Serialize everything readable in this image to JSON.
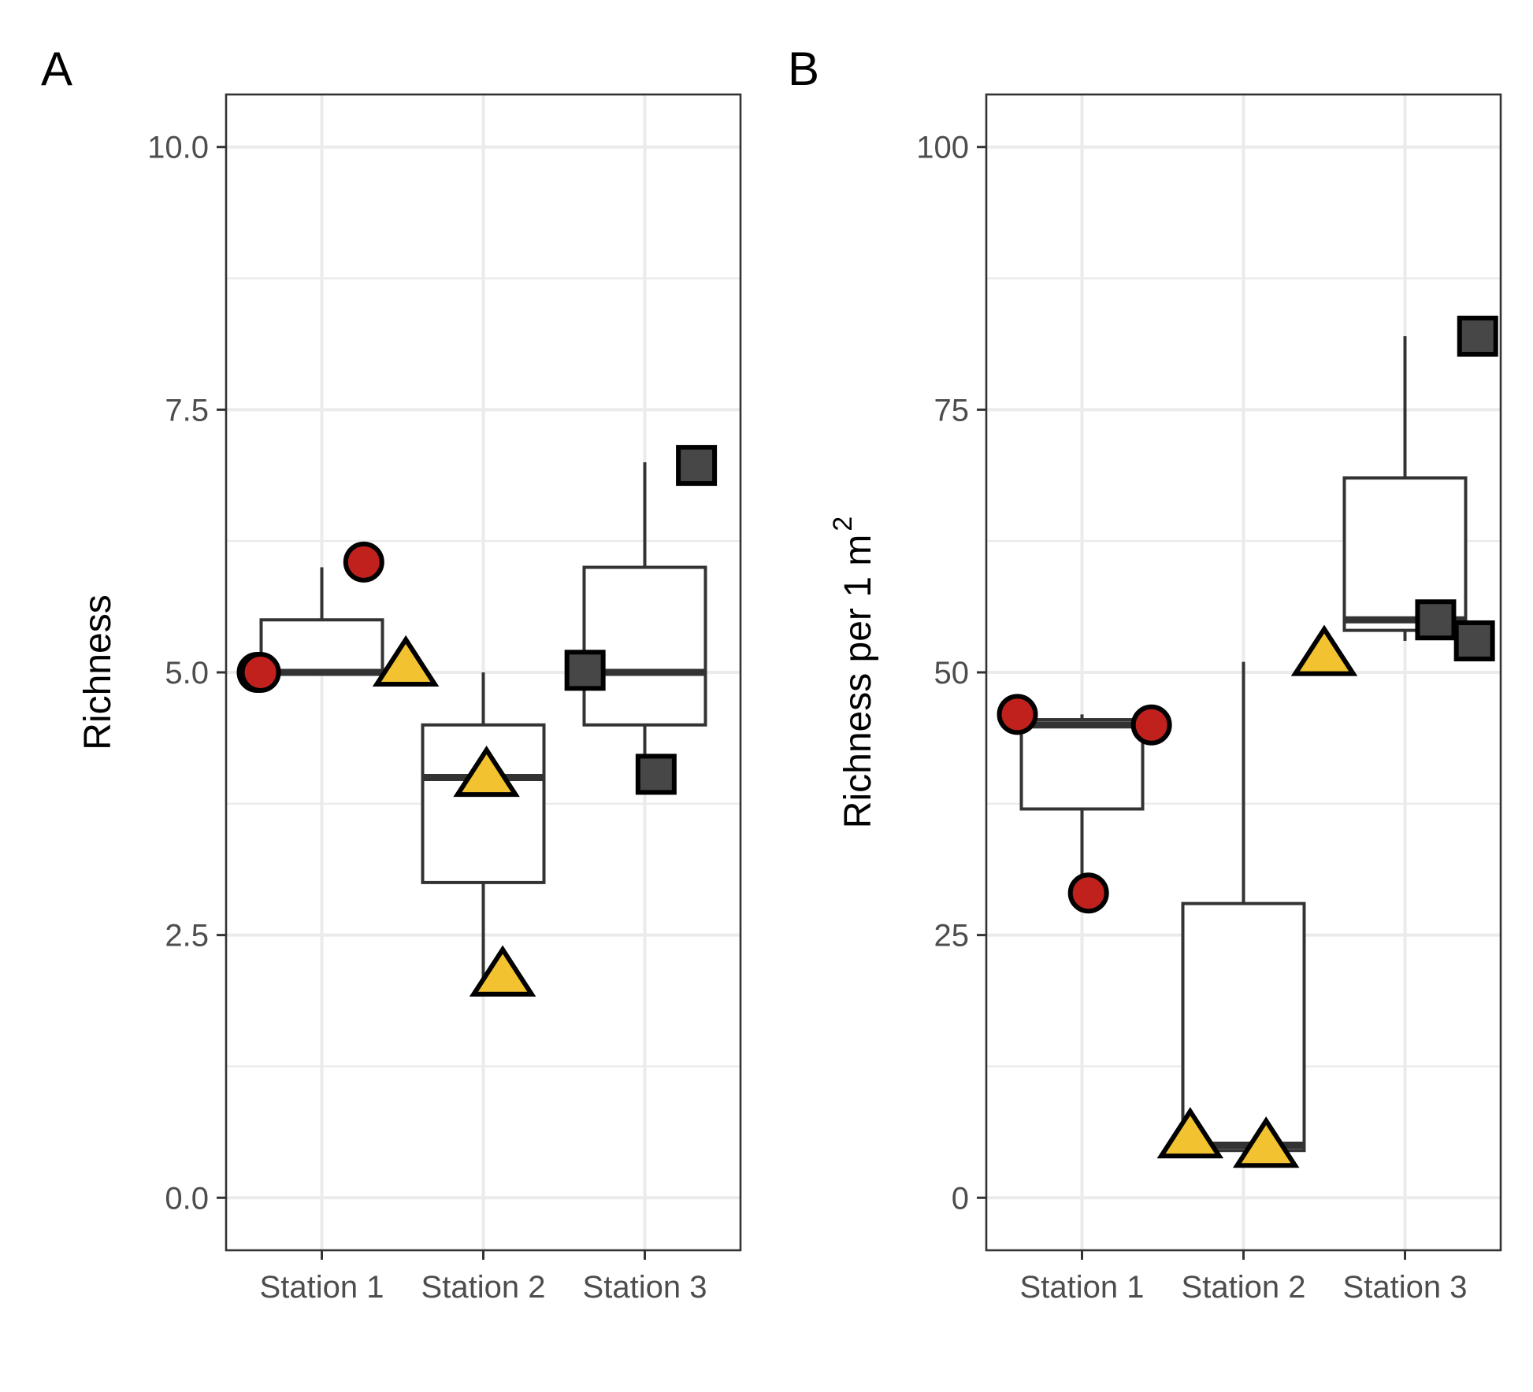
{
  "colors": {
    "circle": "#c0211d",
    "triangle": "#f2c230",
    "square": "#474747",
    "outline": "#000000"
  },
  "chart_data": [
    {
      "type": "box",
      "panel_tag": "A",
      "title": "",
      "xlabel": "",
      "ylabel": "Richness",
      "ylabel_sup": "",
      "categories": [
        "Station 1",
        "Station 2",
        "Station 3"
      ],
      "yticks": [
        "0.0",
        "2.5",
        "5.0",
        "7.5",
        "10.0"
      ],
      "ytick_values": [
        0,
        2.5,
        5,
        7.5,
        10
      ],
      "ylim": [
        -0.5,
        10.5
      ],
      "grid": true,
      "boxes": [
        {
          "category": "Station 1",
          "q1": 5,
          "median": 5,
          "q3": 5.5,
          "whisker_low": 5,
          "whisker_high": 6
        },
        {
          "category": "Station 2",
          "q1": 3,
          "median": 4,
          "q3": 4.5,
          "whisker_low": 2,
          "whisker_high": 5
        },
        {
          "category": "Station 3",
          "q1": 4.5,
          "median": 5,
          "q3": 6,
          "whisker_low": 4,
          "whisker_high": 7
        }
      ],
      "points": [
        {
          "category": "Station 1",
          "y": 5,
          "jitter": -0.4,
          "shape": "circle"
        },
        {
          "category": "Station 1",
          "y": 5,
          "jitter": -0.38,
          "shape": "circle"
        },
        {
          "category": "Station 1",
          "y": 6.05,
          "jitter": 0.26,
          "shape": "circle"
        },
        {
          "category": "Station 1",
          "y": 5.05,
          "jitter": 0.52,
          "shape": "triangle"
        },
        {
          "category": "Station 2",
          "y": 4.0,
          "jitter": 0.02,
          "shape": "triangle"
        },
        {
          "category": "Station 2",
          "y": 2.1,
          "jitter": 0.12,
          "shape": "triangle"
        },
        {
          "category": "Station 3",
          "y": 5.02,
          "jitter": -0.37,
          "shape": "square"
        },
        {
          "category": "Station 3",
          "y": 6.97,
          "jitter": 0.32,
          "shape": "square"
        },
        {
          "category": "Station 3",
          "y": 4.03,
          "jitter": 0.07,
          "shape": "square"
        }
      ]
    },
    {
      "type": "box",
      "panel_tag": "B",
      "title": "",
      "xlabel": "",
      "ylabel": "Richness per 1 m",
      "ylabel_sup": "2",
      "categories": [
        "Station 1",
        "Station 2",
        "Station 3"
      ],
      "yticks": [
        "0",
        "25",
        "50",
        "75",
        "100"
      ],
      "ytick_values": [
        0,
        25,
        50,
        75,
        100
      ],
      "ylim": [
        -5,
        105
      ],
      "grid": true,
      "boxes": [
        {
          "category": "Station 1",
          "q1": 37,
          "median": 45,
          "q3": 45.5,
          "whisker_low": 29,
          "whisker_high": 46
        },
        {
          "category": "Station 2",
          "q1": 4.5,
          "median": 5,
          "q3": 28,
          "whisker_low": 4.5,
          "whisker_high": 51
        },
        {
          "category": "Station 3",
          "q1": 54,
          "median": 55,
          "q3": 68.5,
          "whisker_low": 53,
          "whisker_high": 82
        }
      ],
      "points": [
        {
          "category": "Station 1",
          "y": 46,
          "jitter": -0.4,
          "shape": "circle"
        },
        {
          "category": "Station 1",
          "y": 45,
          "jitter": 0.43,
          "shape": "circle"
        },
        {
          "category": "Station 1",
          "y": 29,
          "jitter": 0.04,
          "shape": "circle"
        },
        {
          "category": "Station 2",
          "y": 5.6,
          "jitter": -0.33,
          "shape": "triangle"
        },
        {
          "category": "Station 2",
          "y": 4.7,
          "jitter": 0.14,
          "shape": "triangle"
        },
        {
          "category": "Station 2",
          "y": 51.5,
          "jitter": 0.5,
          "shape": "triangle"
        },
        {
          "category": "Station 3",
          "y": 82,
          "jitter": 0.45,
          "shape": "square"
        },
        {
          "category": "Station 3",
          "y": 55,
          "jitter": 0.19,
          "shape": "square"
        },
        {
          "category": "Station 3",
          "y": 53,
          "jitter": 0.43,
          "shape": "square"
        }
      ]
    }
  ]
}
